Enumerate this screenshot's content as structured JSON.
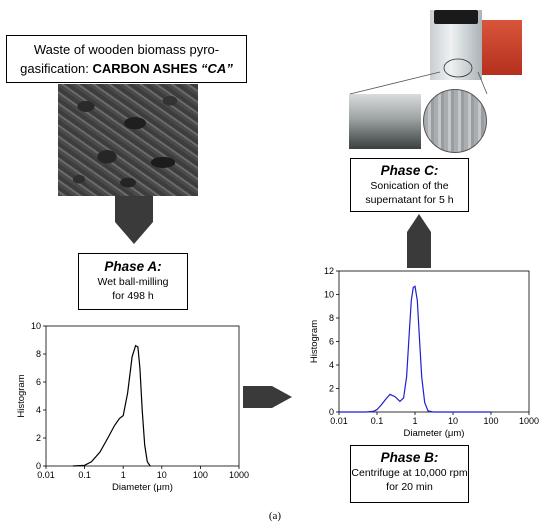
{
  "title_box": {
    "line1": "Waste of wooden biomass pyro-",
    "line2_prefix": "gasification: ",
    "line2_bold": "CARBON ASHES",
    "line2_quote": "“CA”"
  },
  "phases": {
    "A": {
      "title": "Phase A:",
      "line1": "Wet ball-milling",
      "line2": "for 498 h"
    },
    "B": {
      "title": "Phase B:",
      "line1": "Centrifuge at 10,000 rpm",
      "line2": "for 20 min"
    },
    "C": {
      "title": "Phase C:",
      "line1": "Sonication of the",
      "line2": "supernatant for 5 h"
    }
  },
  "caption": "(a)",
  "colors": {
    "curve_left": "#000000",
    "curve_right": "#1f1fd1",
    "arrow": "#3a3a3a"
  },
  "chart_data": [
    {
      "type": "line",
      "xscale": "log",
      "xlabel": "Diameter (μm)",
      "ylabel": "Histogram",
      "xlim": [
        0.01,
        1000
      ],
      "ylim": [
        0,
        10
      ],
      "xticks": [
        "0.01",
        "0.1",
        "1",
        "10",
        "100",
        "1000"
      ],
      "yticks": [
        "0",
        "2",
        "4",
        "6",
        "8",
        "10"
      ],
      "series": [
        {
          "x": [
            0.05,
            0.1,
            0.15,
            0.25,
            0.4,
            0.6,
            0.8,
            1.0,
            1.3,
            1.7,
            2.1,
            2.4,
            2.7,
            3.1,
            3.6,
            4.2,
            5.0
          ],
          "y": [
            0,
            0.05,
            0.3,
            1.0,
            2.0,
            2.9,
            3.4,
            3.6,
            5.2,
            7.8,
            8.6,
            8.5,
            7.0,
            4.0,
            1.5,
            0.3,
            0
          ]
        }
      ]
    },
    {
      "type": "line",
      "xscale": "log",
      "xlabel": "Diameter (μm)",
      "ylabel": "Histogram",
      "xlim": [
        0.01,
        1000
      ],
      "ylim": [
        0,
        12
      ],
      "xticks": [
        "0.01",
        "0.1",
        "1",
        "10",
        "100",
        "1000"
      ],
      "yticks": [
        "0",
        "2",
        "4",
        "6",
        "8",
        "10",
        "12"
      ],
      "series": [
        {
          "x": [
            0.01,
            0.05,
            0.08,
            0.1,
            0.13,
            0.17,
            0.22,
            0.3,
            0.4,
            0.5,
            0.6,
            0.7,
            0.8,
            0.9,
            1.0,
            1.15,
            1.3,
            1.5,
            1.8,
            2.2,
            3.0,
            5,
            100
          ],
          "y": [
            0,
            0,
            0.05,
            0.2,
            0.6,
            1.1,
            1.5,
            1.3,
            0.9,
            1.2,
            3.0,
            6.5,
            9.5,
            10.6,
            10.7,
            9.5,
            6.5,
            3.0,
            0.8,
            0.1,
            0,
            0,
            0
          ]
        }
      ]
    }
  ]
}
